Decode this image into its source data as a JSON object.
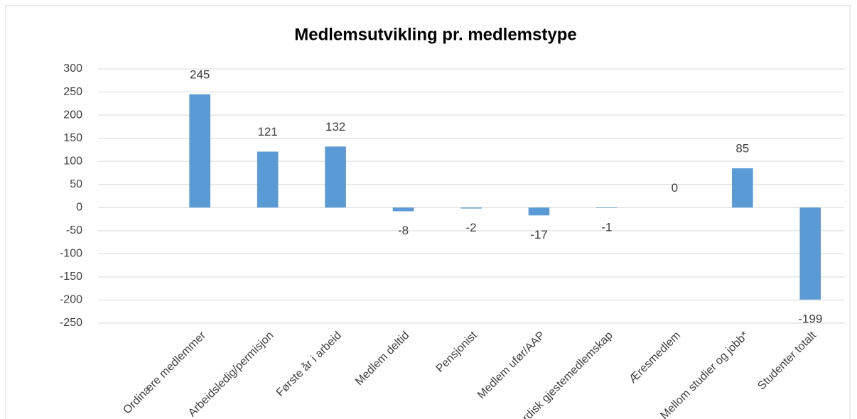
{
  "chart_data": {
    "type": "bar",
    "title": "Medlemsutvikling pr. medlemstype",
    "categories": [
      null,
      "Ordinære medlemmer",
      "Arbeidsledig/permisjon",
      "Første år i arbeid",
      "Medlem deltid",
      "Pensjonist",
      "Medlem ufør/AAP",
      "Nordisk gjestemedlemskap",
      "Æresmedlem",
      "Mellom studier og jobb*",
      "Studenter totalt"
    ],
    "values": [
      null,
      245,
      121,
      132,
      -8,
      -2,
      -17,
      -1,
      0,
      85,
      -199
    ],
    "color": "#5b9bd5",
    "ylim": [
      -250,
      300
    ],
    "yticks": [
      -250,
      -200,
      -150,
      -100,
      -50,
      0,
      50,
      100,
      150,
      200,
      250,
      300
    ],
    "grid": true
  }
}
